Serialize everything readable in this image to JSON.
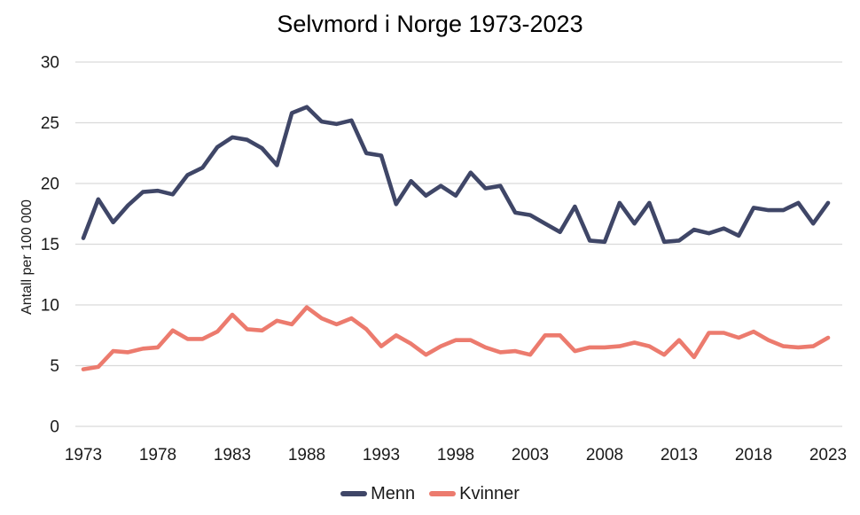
{
  "colors": {
    "background": "#ffffff",
    "gridline": "#d9d9d9",
    "text": "#1a1a1a",
    "title": "#000000",
    "menn_line": "#3f4667",
    "kvinner_line": "#ec7b6e"
  },
  "chart_data": {
    "type": "line",
    "title": "Selvmord i Norge 1973-2023",
    "xlabel": "",
    "ylabel": "Antall per 100 000",
    "ylim": [
      0,
      30
    ],
    "yticks": [
      0,
      5,
      10,
      15,
      20,
      25,
      30
    ],
    "xticks": [
      1973,
      1978,
      1983,
      1988,
      1993,
      1998,
      2003,
      2008,
      2013,
      2018,
      2023
    ],
    "grid": "horizontal",
    "legend_position": "bottom",
    "x": [
      1973,
      1974,
      1975,
      1976,
      1977,
      1978,
      1979,
      1980,
      1981,
      1982,
      1983,
      1984,
      1985,
      1986,
      1987,
      1988,
      1989,
      1990,
      1991,
      1992,
      1993,
      1994,
      1995,
      1996,
      1997,
      1998,
      1999,
      2000,
      2001,
      2002,
      2003,
      2004,
      2005,
      2006,
      2007,
      2008,
      2009,
      2010,
      2011,
      2012,
      2013,
      2014,
      2015,
      2016,
      2017,
      2018,
      2019,
      2020,
      2021,
      2022,
      2023
    ],
    "series": [
      {
        "name": "Menn",
        "color": "#3f4667",
        "values": [
          15.5,
          18.7,
          16.8,
          18.2,
          19.3,
          19.4,
          19.1,
          20.7,
          21.3,
          23.0,
          23.8,
          23.6,
          22.9,
          21.5,
          25.8,
          26.3,
          25.1,
          24.9,
          25.2,
          22.5,
          22.3,
          18.3,
          20.2,
          19.0,
          19.8,
          19.0,
          20.9,
          19.6,
          19.8,
          17.6,
          17.4,
          16.7,
          16.0,
          18.1,
          15.3,
          15.2,
          18.4,
          16.7,
          18.4,
          15.2,
          15.3,
          16.2,
          15.9,
          16.3,
          15.7,
          18.0,
          17.8,
          17.8,
          18.4,
          16.7,
          18.4
        ]
      },
      {
        "name": "Kvinner",
        "color": "#ec7b6e",
        "values": [
          4.7,
          4.9,
          6.2,
          6.1,
          6.4,
          6.5,
          7.9,
          7.2,
          7.2,
          7.8,
          9.2,
          8.0,
          7.9,
          8.7,
          8.4,
          9.8,
          8.9,
          8.4,
          8.9,
          8.0,
          6.6,
          7.5,
          6.8,
          5.9,
          6.6,
          7.1,
          7.1,
          6.5,
          6.1,
          6.2,
          5.9,
          7.5,
          7.5,
          6.2,
          6.5,
          6.5,
          6.6,
          6.9,
          6.6,
          5.9,
          7.1,
          5.7,
          7.7,
          7.7,
          7.3,
          7.8,
          7.1,
          6.6,
          6.5,
          6.6,
          7.3
        ]
      }
    ]
  }
}
